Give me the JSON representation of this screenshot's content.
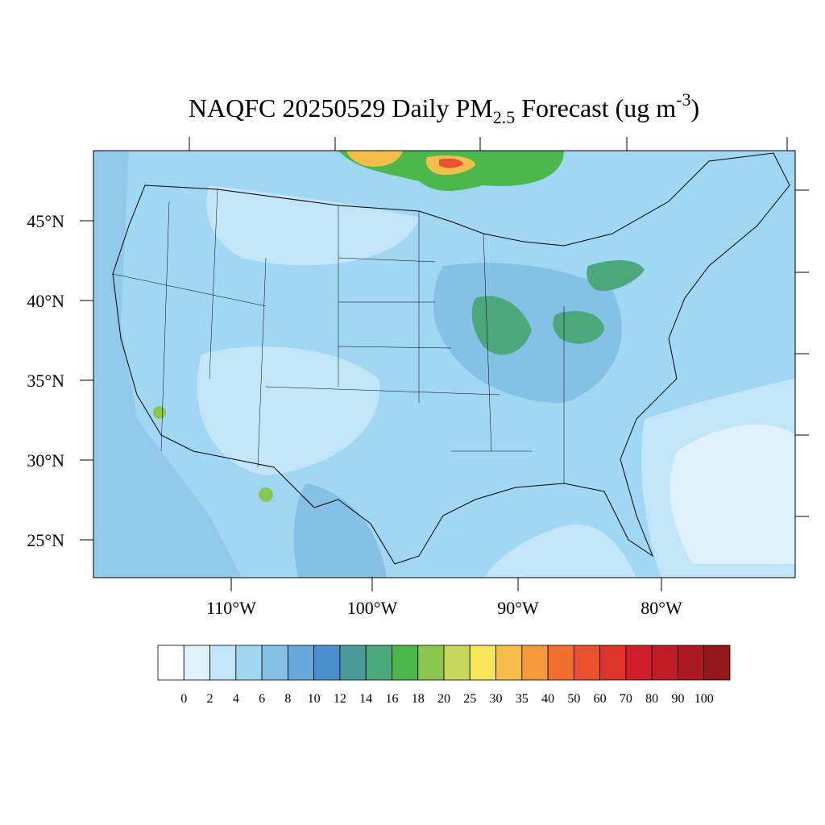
{
  "title": [
    "NAQFC 20250529 Daily PM",
    "2.5",
    " Forecast (ug m",
    "-3",
    ")"
  ],
  "lat_labels": [
    "45°N",
    "40°N",
    "35°N",
    "30°N",
    "25°N"
  ],
  "lon_labels": [
    "110°W",
    "100°W",
    "90°W",
    "80°W"
  ],
  "colorbar": {
    "levels": [
      0,
      2,
      4,
      6,
      8,
      10,
      12,
      14,
      16,
      18,
      20,
      25,
      30,
      35,
      40,
      50,
      60,
      70,
      80,
      90,
      100
    ],
    "colors": [
      "#ffffff",
      "#dff1fb",
      "#c2e6f8",
      "#a0d8f3",
      "#85c0e5",
      "#67a8dc",
      "#4a8fcf",
      "#4a9a9a",
      "#4aa87a",
      "#4ab84a",
      "#88c64e",
      "#c6d85a",
      "#f7e55a",
      "#f6be48",
      "#f59a3c",
      "#f26e2e",
      "#e8502e",
      "#de3428",
      "#d21e2a",
      "#bf1c26",
      "#aa1a20",
      "#93161a"
    ]
  }
}
